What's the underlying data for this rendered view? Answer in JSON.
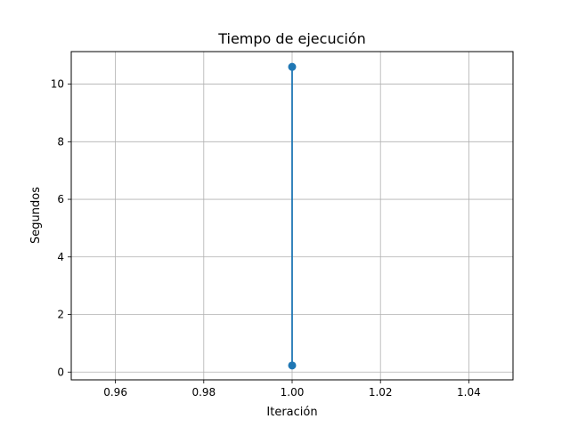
{
  "chart_data": {
    "type": "line",
    "title": "Tiempo de ejecución",
    "xlabel": "Iteración",
    "ylabel": "Segundos",
    "xlim": [
      0.95,
      1.05
    ],
    "ylim": [
      -0.27,
      11.13
    ],
    "xticks": [
      0.96,
      0.98,
      1.0,
      1.02,
      1.04
    ],
    "xtick_labels": [
      "0.96",
      "0.98",
      "1.00",
      "1.02",
      "1.04"
    ],
    "yticks": [
      0,
      2,
      4,
      6,
      8,
      10
    ],
    "ytick_labels": [
      "0",
      "2",
      "4",
      "6",
      "8",
      "10"
    ],
    "grid": true,
    "series": [
      {
        "color": "#1f77b4",
        "marker": "circle",
        "points": [
          {
            "x": 1.0,
            "y": 0.23
          },
          {
            "x": 1.0,
            "y": 10.6
          }
        ]
      }
    ]
  }
}
